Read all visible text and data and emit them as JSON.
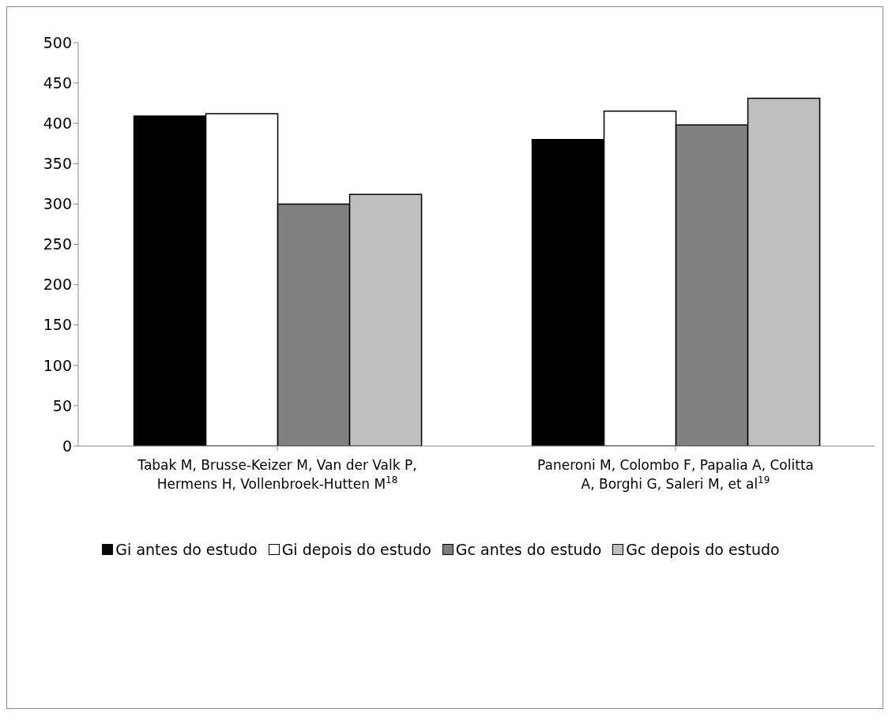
{
  "chart_data": {
    "type": "bar",
    "categories": [
      "Tabak M, Brusse-Keizer M, Van der Valk P, Hermens H, Vollenbroek-Hutten M$^{18}$",
      "Paneroni M, Colombo F, Papalia A, Colitta A, Borghi G, Saleri M, et al$^{19}$"
    ],
    "series": [
      {
        "name": "Gi antes do estudo",
        "color": "#000000",
        "values": [
          409,
          380
        ]
      },
      {
        "name": "Gi depois do estudo",
        "color": "#ffffff",
        "values": [
          412,
          415
        ]
      },
      {
        "name": "Gc antes do estudo",
        "color": "#808080",
        "values": [
          300,
          398
        ]
      },
      {
        "name": "Gc depois do estudo",
        "color": "#bfbfbf",
        "values": [
          312,
          431
        ]
      }
    ],
    "ylim": [
      0,
      500
    ],
    "yticks": [
      0,
      50,
      100,
      150,
      200,
      250,
      300,
      350,
      400,
      450,
      500
    ],
    "grid": false,
    "legend": "bottom"
  }
}
